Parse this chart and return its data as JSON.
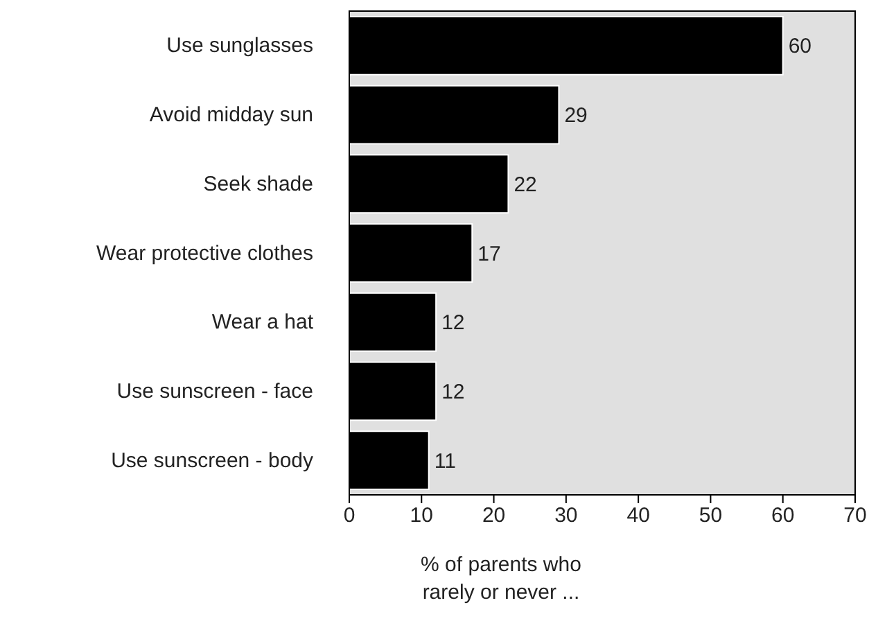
{
  "chart_data": {
    "type": "bar",
    "orientation": "horizontal",
    "categories": [
      "Use sunglasses",
      "Avoid midday sun",
      "Seek shade",
      "Wear protective clothes",
      "Wear a hat",
      "Use sunscreen - face",
      "Use sunscreen - body"
    ],
    "values": [
      60,
      29,
      22,
      17,
      12,
      12,
      11
    ],
    "color": "#000000",
    "xlabel": "% of parents who\nrarely or never ...",
    "xlim": [
      0,
      70
    ],
    "xticks": [
      0,
      10,
      20,
      30,
      40,
      50,
      60,
      70
    ],
    "data_labels": true,
    "grid": false
  }
}
